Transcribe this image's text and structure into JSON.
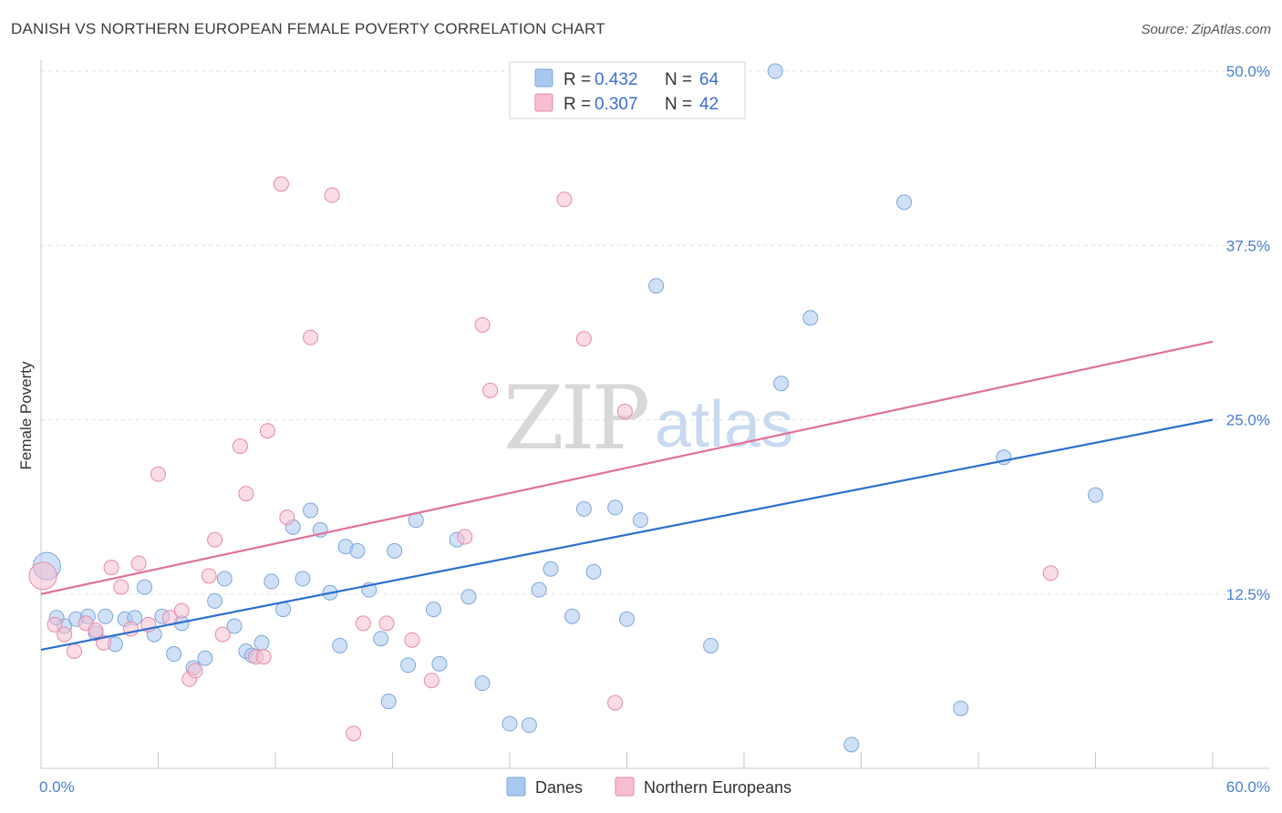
{
  "header": {
    "title": "DANISH VS NORTHERN EUROPEAN FEMALE POVERTY CORRELATION CHART",
    "source": "Source: ZipAtlas.com"
  },
  "watermark": {
    "zip": "ZIP",
    "atlas": "atlas"
  },
  "legend": {
    "rows": [
      {
        "r_label": "R = ",
        "r_value": "0.432",
        "n_label": "N = ",
        "n_value": "64",
        "color": "#a9c8f0",
        "stroke": "#7fa6d8"
      },
      {
        "r_label": "R = ",
        "r_value": "0.307",
        "n_label": "N = ",
        "n_value": "42",
        "color": "#f6bfd0",
        "stroke": "#e58aa8"
      }
    ]
  },
  "bottom_legend": [
    {
      "label": "Danes",
      "color": "#a9c8f0",
      "stroke": "#7fa6d8"
    },
    {
      "label": "Northern Europeans",
      "color": "#f6bfd0",
      "stroke": "#e58aa8"
    }
  ],
  "chart_data": {
    "type": "scatter",
    "ylabel": "Female Poverty",
    "xlim": [
      0,
      60
    ],
    "ylim": [
      0,
      50
    ],
    "x_tick_labels": [
      "0.0%",
      "60.0%"
    ],
    "y_ticks": [
      12.5,
      25.0,
      37.5,
      50.0
    ],
    "y_tick_labels": [
      "12.5%",
      "25.0%",
      "37.5%",
      "50.0%"
    ],
    "grid": true,
    "legend_position": "top-center",
    "series": [
      {
        "name": "Danes",
        "color": "#a9c8f0",
        "stroke": "#7fa6d8",
        "line_color": "#2b6fcf",
        "trend": [
          [
            0,
            8.5
          ],
          [
            60,
            25.0
          ]
        ],
        "points": [
          [
            0.3,
            14.5
          ],
          [
            0.8,
            10.8
          ],
          [
            1.2,
            10.2
          ],
          [
            1.8,
            10.7
          ],
          [
            2.4,
            10.9
          ],
          [
            2.8,
            9.7
          ],
          [
            3.3,
            10.9
          ],
          [
            3.8,
            8.9
          ],
          [
            4.3,
            10.7
          ],
          [
            4.8,
            10.8
          ],
          [
            5.3,
            13.0
          ],
          [
            5.8,
            9.6
          ],
          [
            6.2,
            10.9
          ],
          [
            6.8,
            8.2
          ],
          [
            7.2,
            10.4
          ],
          [
            7.8,
            7.2
          ],
          [
            8.4,
            7.9
          ],
          [
            8.9,
            12.0
          ],
          [
            9.4,
            13.6
          ],
          [
            9.9,
            10.2
          ],
          [
            10.5,
            8.4
          ],
          [
            10.8,
            8.1
          ],
          [
            11.3,
            9.0
          ],
          [
            11.8,
            13.4
          ],
          [
            12.4,
            11.4
          ],
          [
            12.9,
            17.3
          ],
          [
            13.4,
            13.6
          ],
          [
            13.8,
            18.5
          ],
          [
            14.3,
            17.1
          ],
          [
            14.8,
            12.6
          ],
          [
            15.3,
            8.8
          ],
          [
            15.6,
            15.9
          ],
          [
            16.2,
            15.6
          ],
          [
            16.8,
            12.8
          ],
          [
            17.4,
            9.3
          ],
          [
            17.8,
            4.8
          ],
          [
            18.1,
            15.6
          ],
          [
            18.8,
            7.4
          ],
          [
            19.2,
            17.8
          ],
          [
            20.1,
            11.4
          ],
          [
            20.4,
            7.5
          ],
          [
            21.3,
            16.4
          ],
          [
            21.9,
            12.3
          ],
          [
            22.6,
            6.1
          ],
          [
            24.0,
            3.2
          ],
          [
            25.0,
            3.1
          ],
          [
            25.5,
            12.8
          ],
          [
            26.1,
            14.3
          ],
          [
            27.2,
            10.9
          ],
          [
            27.8,
            18.6
          ],
          [
            28.3,
            14.1
          ],
          [
            29.4,
            18.7
          ],
          [
            30.0,
            10.7
          ],
          [
            30.7,
            17.8
          ],
          [
            31.5,
            34.6
          ],
          [
            34.3,
            8.8
          ],
          [
            37.6,
            50.0
          ],
          [
            37.9,
            27.6
          ],
          [
            39.4,
            32.3
          ],
          [
            41.5,
            1.7
          ],
          [
            44.2,
            40.6
          ],
          [
            47.1,
            4.3
          ],
          [
            49.3,
            22.3
          ],
          [
            54.0,
            19.6
          ]
        ]
      },
      {
        "name": "Northern Europeans",
        "color": "#f6bfd0",
        "stroke": "#e58aa8",
        "line_color": "#e0709a",
        "trend": [
          [
            0,
            12.5
          ],
          [
            60,
            30.6
          ]
        ],
        "points": [
          [
            0.1,
            13.8
          ],
          [
            0.7,
            10.3
          ],
          [
            1.2,
            9.6
          ],
          [
            1.7,
            8.4
          ],
          [
            2.3,
            10.4
          ],
          [
            2.8,
            9.9
          ],
          [
            3.2,
            9.0
          ],
          [
            3.6,
            14.4
          ],
          [
            4.1,
            13.0
          ],
          [
            4.6,
            10.0
          ],
          [
            5.0,
            14.7
          ],
          [
            5.5,
            10.3
          ],
          [
            6.0,
            21.1
          ],
          [
            6.6,
            10.8
          ],
          [
            7.2,
            11.3
          ],
          [
            7.6,
            6.4
          ],
          [
            7.9,
            7.0
          ],
          [
            8.6,
            13.8
          ],
          [
            8.9,
            16.4
          ],
          [
            9.3,
            9.6
          ],
          [
            10.2,
            23.1
          ],
          [
            10.5,
            19.7
          ],
          [
            11.0,
            8.0
          ],
          [
            11.4,
            8.0
          ],
          [
            11.6,
            24.2
          ],
          [
            12.3,
            41.9
          ],
          [
            12.6,
            18.0
          ],
          [
            13.8,
            30.9
          ],
          [
            14.9,
            41.1
          ],
          [
            16.0,
            2.5
          ],
          [
            16.5,
            10.4
          ],
          [
            17.7,
            10.4
          ],
          [
            19.0,
            9.2
          ],
          [
            20.0,
            6.3
          ],
          [
            21.7,
            16.6
          ],
          [
            22.6,
            31.8
          ],
          [
            23.0,
            27.1
          ],
          [
            26.8,
            40.8
          ],
          [
            27.8,
            30.8
          ],
          [
            29.4,
            4.7
          ],
          [
            29.9,
            25.6
          ],
          [
            51.7,
            14.0
          ]
        ]
      }
    ]
  }
}
